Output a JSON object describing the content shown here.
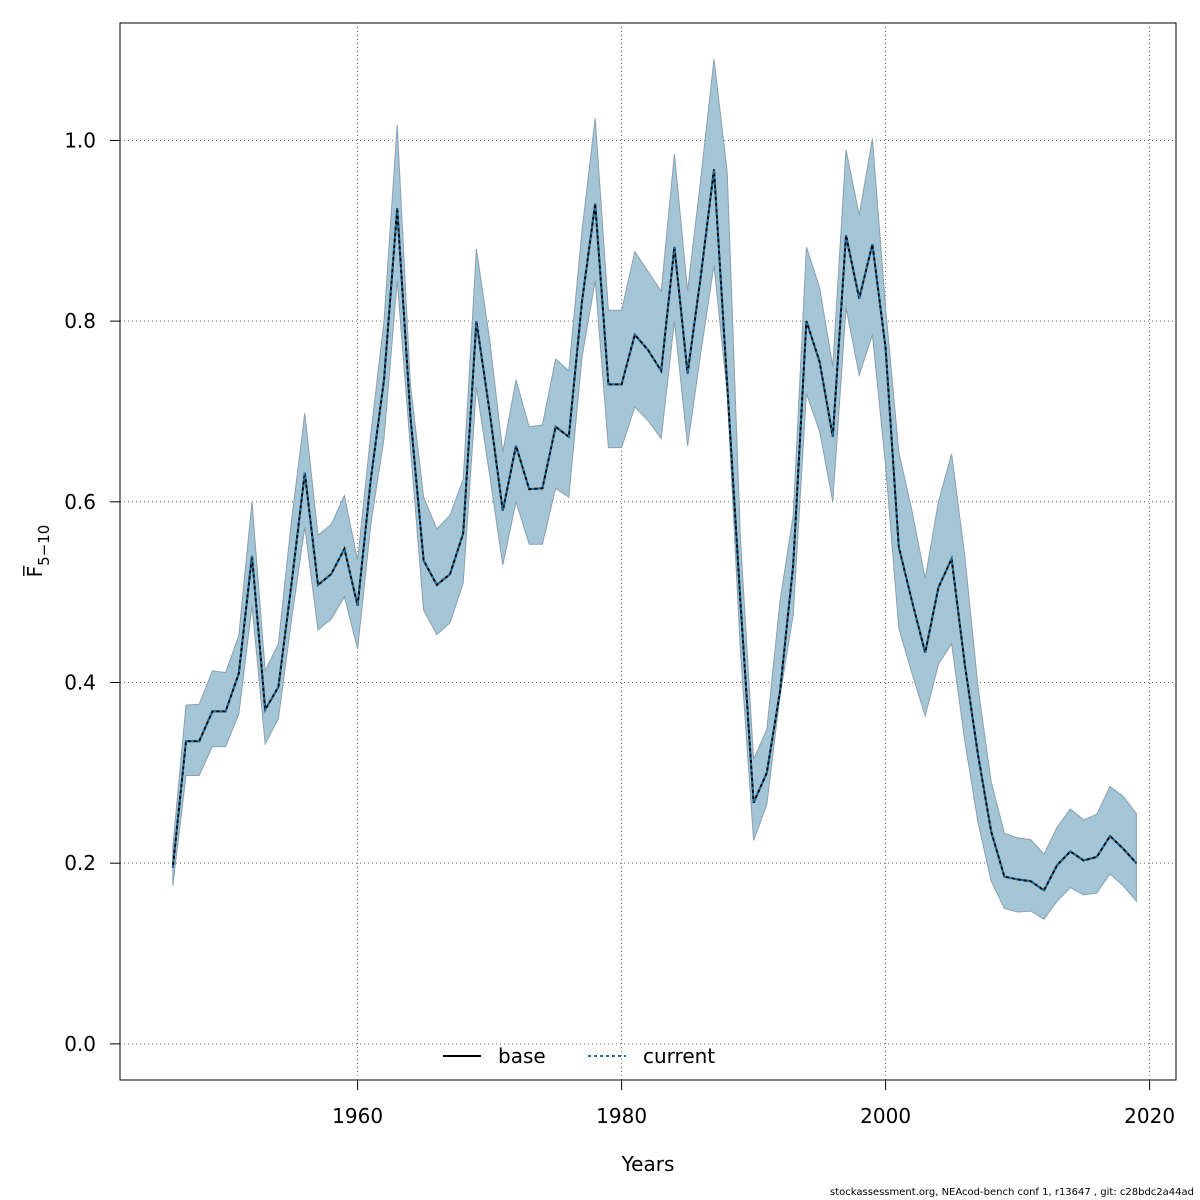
{
  "chart_data": {
    "type": "line",
    "title": "",
    "xlabel": "Years",
    "ylabel": "F̅",
    "ylabel_subscript": "5−10",
    "xlim": [
      1942,
      2022
    ],
    "ylim": [
      -0.04,
      1.13
    ],
    "xticks": [
      1960,
      1980,
      2000,
      2020
    ],
    "yticks": [
      0.0,
      0.2,
      0.4,
      0.6,
      0.8,
      1.0
    ],
    "xtick_labels": [
      "1960",
      "1980",
      "2000",
      "2020"
    ],
    "ytick_labels": [
      "0.0",
      "0.2",
      "0.4",
      "0.6",
      "0.8",
      "1.0"
    ],
    "grid": true,
    "legend_position": "bottom-center",
    "colors": {
      "band_fill": "#a4c5d6",
      "band_edge": "#8aa0ae",
      "base_line": "#000000",
      "current_line": "#1f6fa0",
      "grid": "#666666"
    },
    "x": [
      1946,
      1947,
      1948,
      1949,
      1950,
      1951,
      1952,
      1953,
      1954,
      1955,
      1956,
      1957,
      1958,
      1959,
      1960,
      1961,
      1962,
      1963,
      1964,
      1965,
      1966,
      1967,
      1968,
      1969,
      1970,
      1971,
      1972,
      1973,
      1974,
      1975,
      1976,
      1977,
      1978,
      1979,
      1980,
      1981,
      1982,
      1983,
      1984,
      1985,
      1986,
      1987,
      1988,
      1989,
      1990,
      1991,
      1992,
      1993,
      1994,
      1995,
      1996,
      1997,
      1998,
      1999,
      2000,
      2001,
      2002,
      2003,
      2004,
      2005,
      2006,
      2007,
      2008,
      2009,
      2010,
      2011,
      2012,
      2013,
      2014,
      2015,
      2016,
      2017,
      2018,
      2019
    ],
    "series": [
      {
        "name": "base",
        "values": [
          0.195,
          0.335,
          0.335,
          0.368,
          0.368,
          0.41,
          0.54,
          0.37,
          0.395,
          0.51,
          0.632,
          0.508,
          0.52,
          0.548,
          0.485,
          0.625,
          0.735,
          0.925,
          0.695,
          0.535,
          0.508,
          0.52,
          0.565,
          0.8,
          0.7,
          0.59,
          0.662,
          0.614,
          0.615,
          0.683,
          0.672,
          0.822,
          0.93,
          0.73,
          0.73,
          0.785,
          0.768,
          0.745,
          0.882,
          0.742,
          0.85,
          0.968,
          0.73,
          0.49,
          0.267,
          0.3,
          0.39,
          0.53,
          0.8,
          0.755,
          0.672,
          0.895,
          0.825,
          0.885,
          0.77,
          0.55,
          0.49,
          0.433,
          0.505,
          0.537,
          0.42,
          0.32,
          0.235,
          0.185,
          0.182,
          0.18,
          0.17,
          0.198,
          0.213,
          0.203,
          0.207,
          0.23,
          0.216,
          0.2
        ]
      },
      {
        "name": "current",
        "values": [
          0.195,
          0.335,
          0.335,
          0.368,
          0.368,
          0.41,
          0.54,
          0.37,
          0.395,
          0.51,
          0.632,
          0.508,
          0.52,
          0.548,
          0.485,
          0.625,
          0.735,
          0.925,
          0.695,
          0.535,
          0.508,
          0.52,
          0.565,
          0.8,
          0.7,
          0.59,
          0.662,
          0.614,
          0.615,
          0.683,
          0.672,
          0.822,
          0.93,
          0.73,
          0.73,
          0.785,
          0.768,
          0.745,
          0.882,
          0.742,
          0.85,
          0.968,
          0.73,
          0.49,
          0.267,
          0.3,
          0.39,
          0.53,
          0.8,
          0.755,
          0.672,
          0.895,
          0.825,
          0.885,
          0.77,
          0.55,
          0.49,
          0.433,
          0.505,
          0.537,
          0.42,
          0.32,
          0.235,
          0.185,
          0.182,
          0.18,
          0.17,
          0.198,
          0.213,
          0.203,
          0.207,
          0.23,
          0.216,
          0.2
        ]
      }
    ],
    "upper": [
      0.218,
      0.375,
      0.376,
      0.413,
      0.411,
      0.452,
      0.6,
      0.413,
      0.443,
      0.58,
      0.698,
      0.563,
      0.575,
      0.607,
      0.535,
      0.675,
      0.8,
      1.017,
      0.73,
      0.605,
      0.57,
      0.585,
      0.625,
      0.88,
      0.78,
      0.655,
      0.735,
      0.683,
      0.685,
      0.758,
      0.745,
      0.9,
      1.025,
      0.812,
      0.812,
      0.877,
      0.855,
      0.833,
      0.985,
      0.833,
      0.958,
      1.09,
      0.965,
      0.56,
      0.315,
      0.348,
      0.49,
      0.585,
      0.882,
      0.837,
      0.75,
      0.99,
      0.917,
      1.002,
      0.815,
      0.655,
      0.59,
      0.515,
      0.6,
      0.653,
      0.54,
      0.395,
      0.29,
      0.233,
      0.228,
      0.226,
      0.21,
      0.24,
      0.26,
      0.248,
      0.254,
      0.285,
      0.274,
      0.255
    ],
    "lower": [
      0.175,
      0.297,
      0.297,
      0.329,
      0.329,
      0.365,
      0.485,
      0.332,
      0.36,
      0.47,
      0.572,
      0.458,
      0.47,
      0.495,
      0.437,
      0.575,
      0.67,
      0.845,
      0.66,
      0.48,
      0.453,
      0.466,
      0.51,
      0.727,
      0.63,
      0.53,
      0.6,
      0.553,
      0.553,
      0.615,
      0.605,
      0.76,
      0.845,
      0.66,
      0.66,
      0.705,
      0.69,
      0.67,
      0.8,
      0.662,
      0.765,
      0.862,
      0.72,
      0.435,
      0.225,
      0.265,
      0.385,
      0.475,
      0.72,
      0.678,
      0.6,
      0.815,
      0.74,
      0.785,
      0.64,
      0.46,
      0.41,
      0.363,
      0.42,
      0.443,
      0.335,
      0.245,
      0.18,
      0.15,
      0.146,
      0.147,
      0.138,
      0.158,
      0.173,
      0.165,
      0.167,
      0.188,
      0.175,
      0.158
    ]
  },
  "footer_text": "stockassessment.org, NEAcod-bench  conf  1, r13647 , git: c28bdc2a44ad"
}
